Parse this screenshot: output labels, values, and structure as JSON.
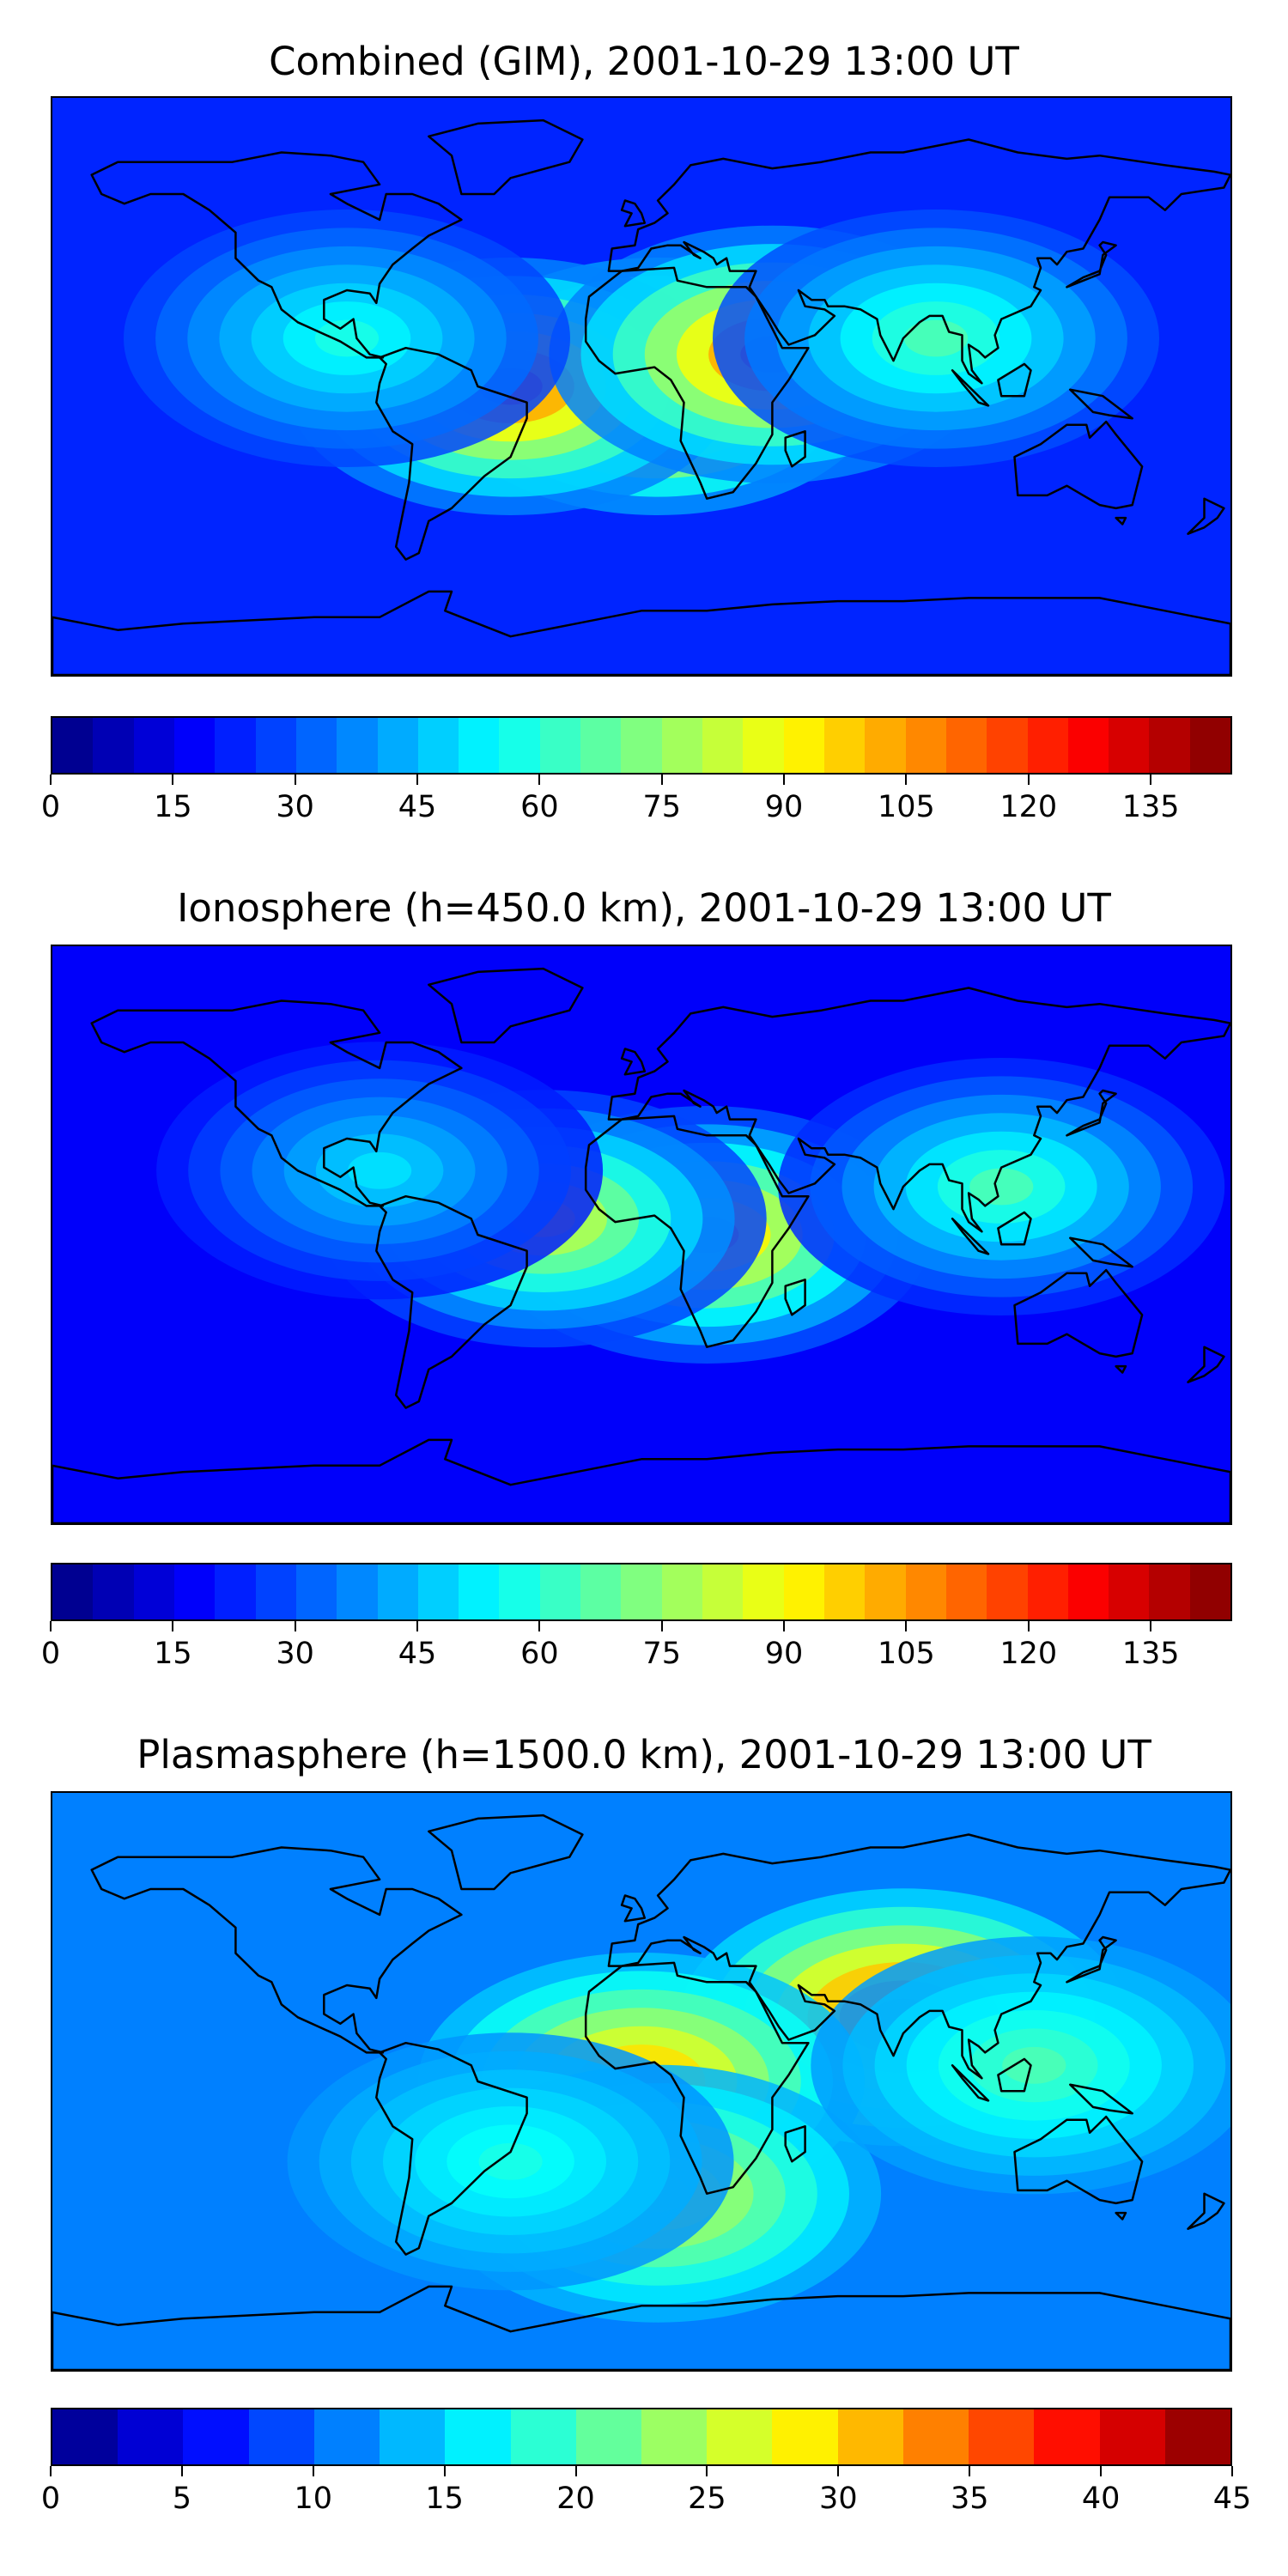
{
  "panels": [
    {
      "title": "Combined (GIM), 2001-10-29 13:00 UT",
      "colorbar": {
        "min": 0,
        "max": 145,
        "step": 5,
        "tick_labels": [
          "0",
          "15",
          "30",
          "45",
          "60",
          "75",
          "90",
          "105",
          "120",
          "135"
        ],
        "tick_values": [
          0,
          15,
          30,
          45,
          60,
          75,
          90,
          105,
          120,
          135
        ]
      },
      "background_level": 0.16,
      "field_hotspots": [
        {
          "lon": 5,
          "lat": 0,
          "level": 0.95
        },
        {
          "lon": -40,
          "lat": 0,
          "level": 0.8
        },
        {
          "lon": 40,
          "lat": 10,
          "level": 0.8
        },
        {
          "lon": 90,
          "lat": 15,
          "level": 0.45
        },
        {
          "lon": -90,
          "lat": 15,
          "level": 0.4
        }
      ]
    },
    {
      "title": "Ionosphere  (h=450.0 km), 2001-10-29 13:00 UT",
      "colorbar": {
        "min": 0,
        "max": 145,
        "step": 5,
        "tick_labels": [
          "0",
          "15",
          "30",
          "45",
          "60",
          "75",
          "90",
          "105",
          "120",
          "135"
        ],
        "tick_values": [
          0,
          15,
          30,
          45,
          60,
          75,
          90,
          105,
          120,
          135
        ]
      },
      "background_level": 0.12,
      "field_hotspots": [
        {
          "lon": 20,
          "lat": 0,
          "level": 0.72
        },
        {
          "lon": -30,
          "lat": 5,
          "level": 0.62
        },
        {
          "lon": 110,
          "lat": 15,
          "level": 0.45
        },
        {
          "lon": -80,
          "lat": 20,
          "level": 0.35
        }
      ]
    },
    {
      "title": "Plasmasphere (h=1500.0 km), 2001-10-29 13:00 UT",
      "colorbar": {
        "min": 0,
        "max": 45,
        "step": 2.5,
        "tick_labels": [
          "0",
          "5",
          "10",
          "15",
          "20",
          "25",
          "30",
          "35",
          "40",
          "45"
        ],
        "tick_values": [
          0,
          5,
          10,
          15,
          20,
          25,
          30,
          35,
          40,
          45
        ]
      },
      "background_level": 0.25,
      "field_hotspots": [
        {
          "lon": 80,
          "lat": 20,
          "level": 0.85
        },
        {
          "lon": 0,
          "lat": 0,
          "level": 0.72
        },
        {
          "lon": 5,
          "lat": -35,
          "level": 0.62
        },
        {
          "lon": 120,
          "lat": 5,
          "level": 0.45
        },
        {
          "lon": -40,
          "lat": -25,
          "level": 0.4
        }
      ]
    }
  ]
}
